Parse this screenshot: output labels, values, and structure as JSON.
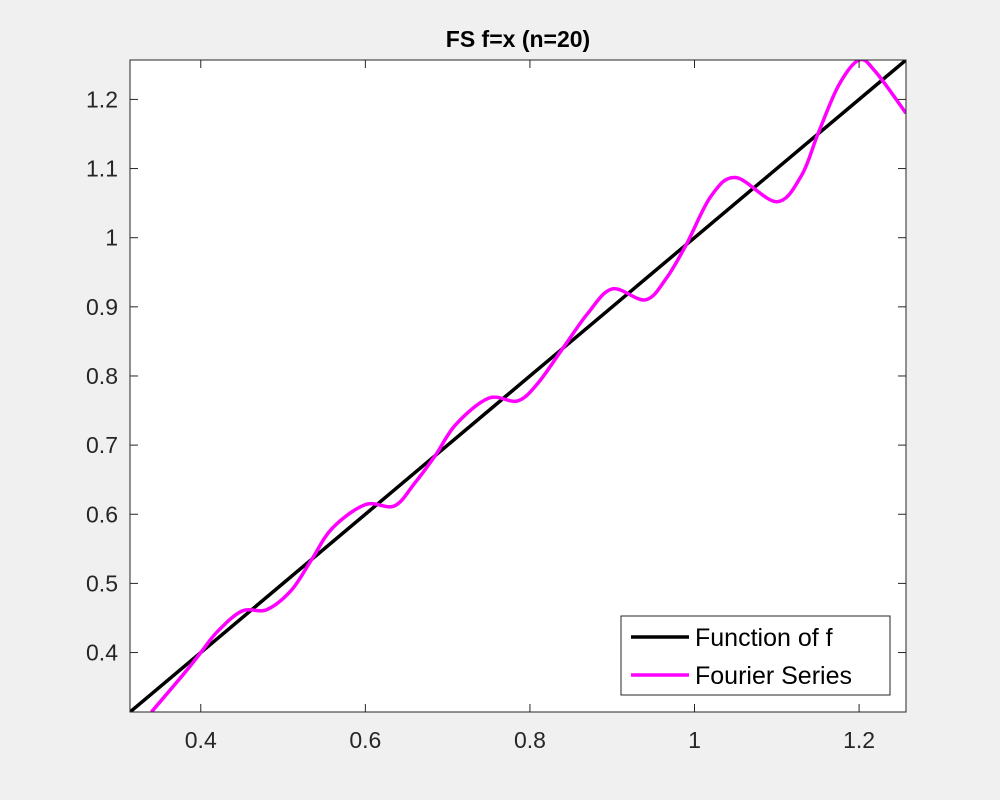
{
  "chart_data": {
    "type": "line",
    "title": "FS f=x (n=20)",
    "xlabel": "",
    "ylabel": "",
    "xlim": [
      0.314,
      1.257
    ],
    "ylim": [
      0.314,
      1.257
    ],
    "xticks": [
      0.4,
      0.6,
      0.8,
      1,
      1.2
    ],
    "xtick_labels": [
      "0.4",
      "0.6",
      "0.8",
      "1",
      "1.2"
    ],
    "yticks": [
      0.4,
      0.5,
      0.6,
      0.7,
      0.8,
      0.9,
      1,
      1.1,
      1.2
    ],
    "ytick_labels": [
      "0.4",
      "0.5",
      "0.6",
      "0.7",
      "0.8",
      "0.9",
      "1",
      "1.1",
      "1.2"
    ],
    "grid": false,
    "legend_position": "bottom-right",
    "series": [
      {
        "name": "Function of f",
        "color": "#000000",
        "x": [
          0.314,
          1.257
        ],
        "y": [
          0.314,
          1.257
        ]
      },
      {
        "name": "Fourier Series",
        "color": "#ff00ff",
        "x": [
          0.34,
          0.38,
          0.4,
          0.42,
          0.45,
          0.48,
          0.51,
          0.535,
          0.56,
          0.6,
          0.635,
          0.66,
          0.685,
          0.71,
          0.75,
          0.785,
          0.81,
          0.84,
          0.87,
          0.9,
          0.94,
          0.965,
          0.99,
          1.02,
          1.05,
          1.1,
          1.13,
          1.15,
          1.175,
          1.2,
          1.22,
          1.257
        ],
        "y": [
          0.314,
          0.37,
          0.4,
          0.43,
          0.46,
          0.462,
          0.49,
          0.535,
          0.58,
          0.614,
          0.612,
          0.645,
          0.685,
          0.73,
          0.768,
          0.764,
          0.79,
          0.84,
          0.89,
          0.926,
          0.91,
          0.94,
          0.99,
          1.06,
          1.087,
          1.052,
          1.09,
          1.15,
          1.22,
          1.257,
          1.24,
          1.18
        ]
      }
    ]
  }
}
